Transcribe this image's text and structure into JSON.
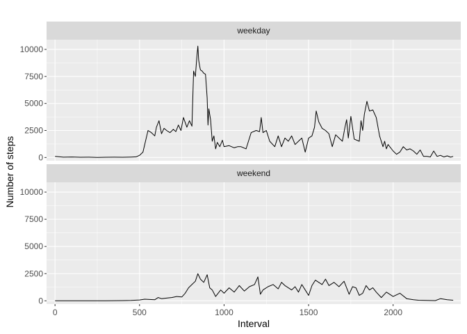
{
  "chart_data": {
    "type": "line",
    "xlabel": "Interval",
    "ylabel": "Number of steps",
    "xlim": [
      -50,
      2400
    ],
    "ylim": [
      -300,
      10900
    ],
    "x_ticks": [
      0,
      500,
      1000,
      1500,
      2000
    ],
    "x_tick_labels": [
      "0",
      "500",
      "1000",
      "1500",
      "2000"
    ],
    "y_ticks": [
      0,
      2500,
      5000,
      7500,
      10000
    ],
    "y_tick_labels": [
      "0",
      "2500",
      "5000",
      "7500",
      "10000"
    ],
    "grid": true,
    "colors": {
      "panel": "#ebebeb",
      "strip": "#d9d9d9",
      "grid": "#ffffff",
      "line": "#000000"
    },
    "facets": [
      {
        "label": "weekday",
        "x": [
          0,
          50,
          100,
          150,
          200,
          250,
          300,
          350,
          400,
          450,
          480,
          500,
          520,
          550,
          570,
          590,
          600,
          615,
          630,
          645,
          660,
          680,
          700,
          715,
          730,
          745,
          760,
          780,
          795,
          810,
          820,
          830,
          840,
          845,
          850,
          855,
          860,
          870,
          880,
          890,
          900,
          905,
          910,
          920,
          930,
          940,
          950,
          960,
          975,
          990,
          1000,
          1030,
          1060,
          1080,
          1100,
          1130,
          1160,
          1190,
          1210,
          1220,
          1230,
          1250,
          1270,
          1300,
          1320,
          1340,
          1360,
          1380,
          1400,
          1420,
          1440,
          1460,
          1480,
          1500,
          1520,
          1535,
          1545,
          1560,
          1580,
          1600,
          1620,
          1640,
          1660,
          1680,
          1700,
          1715,
          1725,
          1735,
          1750,
          1770,
          1800,
          1810,
          1820,
          1830,
          1845,
          1860,
          1880,
          1900,
          1920,
          1940,
          1950,
          1960,
          1970,
          2000,
          2020,
          2040,
          2060,
          2080,
          2100,
          2120,
          2140,
          2160,
          2180,
          2200,
          2220,
          2240,
          2260,
          2280,
          2300,
          2320,
          2340,
          2355
        ],
        "y": [
          100,
          30,
          50,
          20,
          30,
          10,
          20,
          30,
          20,
          40,
          60,
          200,
          500,
          2500,
          2300,
          2000,
          2800,
          3400,
          2200,
          2700,
          2500,
          2300,
          2600,
          2400,
          3000,
          2500,
          3700,
          2800,
          3400,
          2900,
          8000,
          7500,
          9500,
          10300,
          9000,
          8500,
          8100,
          8000,
          7800,
          7700,
          5500,
          3000,
          4500,
          3500,
          1500,
          2000,
          800,
          1400,
          1000,
          1600,
          1000,
          1100,
          900,
          1000,
          1000,
          800,
          2300,
          2500,
          2400,
          3700,
          2300,
          2500,
          1500,
          1000,
          2000,
          1000,
          1800,
          1500,
          2000,
          1200,
          1500,
          1800,
          500,
          1800,
          2000,
          2800,
          4300,
          3300,
          2700,
          2500,
          2200,
          1000,
          2100,
          1800,
          1500,
          2800,
          3500,
          1800,
          3800,
          1700,
          1500,
          3400,
          2500,
          4000,
          5200,
          4300,
          4400,
          3700,
          2000,
          1000,
          1500,
          800,
          1200,
          600,
          300,
          500,
          1000,
          700,
          800,
          600,
          300,
          700,
          100,
          100,
          50,
          600,
          100,
          200,
          50,
          150,
          30,
          100
        ]
      },
      {
        "label": "weekend",
        "x": [
          0,
          100,
          200,
          300,
          400,
          450,
          500,
          530,
          560,
          590,
          610,
          630,
          660,
          690,
          720,
          750,
          770,
          790,
          810,
          830,
          845,
          860,
          880,
          900,
          915,
          930,
          950,
          980,
          1000,
          1030,
          1060,
          1090,
          1120,
          1150,
          1180,
          1200,
          1215,
          1230,
          1260,
          1290,
          1320,
          1340,
          1360,
          1380,
          1400,
          1420,
          1440,
          1460,
          1480,
          1500,
          1520,
          1540,
          1560,
          1580,
          1600,
          1620,
          1650,
          1680,
          1710,
          1740,
          1760,
          1780,
          1800,
          1820,
          1840,
          1860,
          1880,
          1900,
          1930,
          1960,
          2000,
          2040,
          2080,
          2120,
          2150,
          2200,
          2250,
          2280,
          2320,
          2355
        ],
        "y": [
          0,
          0,
          0,
          0,
          20,
          40,
          80,
          150,
          120,
          100,
          300,
          200,
          250,
          300,
          400,
          350,
          700,
          1200,
          1500,
          1800,
          2500,
          2000,
          1700,
          2400,
          1200,
          1000,
          400,
          1000,
          700,
          1200,
          800,
          1400,
          900,
          1300,
          1500,
          2200,
          600,
          1000,
          1300,
          1500,
          1100,
          1700,
          1400,
          1200,
          1000,
          1300,
          800,
          1500,
          1000,
          500,
          1400,
          1900,
          1700,
          1500,
          2000,
          1400,
          1700,
          1300,
          1800,
          600,
          1300,
          1200,
          500,
          700,
          1400,
          1000,
          1200,
          800,
          300,
          800,
          400,
          700,
          200,
          100,
          50,
          30,
          20,
          200,
          100,
          50
        ]
      }
    ]
  }
}
